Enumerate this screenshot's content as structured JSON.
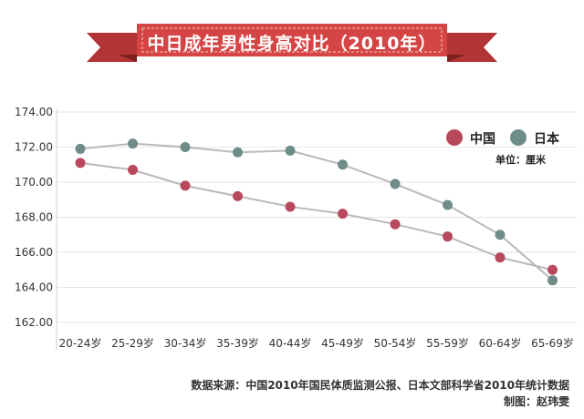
{
  "chart_data": {
    "type": "line",
    "title": "中日成年男性身高对比（2010年）",
    "categories": [
      "20-24岁",
      "25-29岁",
      "30-34岁",
      "35-39岁",
      "40-44岁",
      "45-49岁",
      "50-54岁",
      "55-59岁",
      "60-64岁",
      "65-69岁"
    ],
    "series": [
      {
        "name": "中国",
        "color": "#b8485b",
        "values": [
          171.1,
          170.7,
          169.8,
          169.2,
          168.6,
          168.2,
          167.6,
          166.9,
          165.7,
          165.0
        ]
      },
      {
        "name": "日本",
        "color": "#6e8c88",
        "values": [
          171.9,
          172.2,
          172.0,
          171.7,
          171.8,
          171.0,
          169.9,
          168.7,
          167.0,
          164.4
        ]
      }
    ],
    "ylim": [
      162,
      174
    ],
    "y_ticks": [
      "162.00",
      "164.00",
      "166.00",
      "168.00",
      "170.00",
      "172.00",
      "174.00"
    ],
    "unit": "单位：厘米",
    "legend_position": "top-right",
    "grid": true,
    "line_color": "#b9b9b9"
  },
  "banner": {
    "color": "#d64545",
    "dark_color": "#9c2a2a"
  },
  "footer": {
    "source": "数据来源：中国2010年国民体质监测公报、日本文部科学省2010年统计数据",
    "maker": "制图：赵玮雯"
  }
}
